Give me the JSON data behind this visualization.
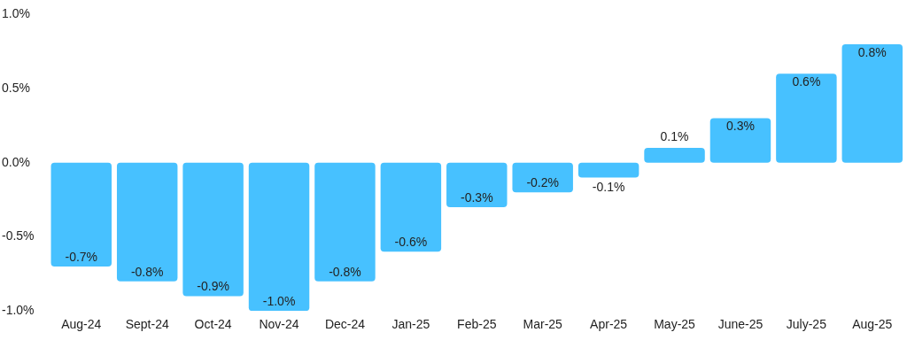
{
  "chart_data": {
    "type": "bar",
    "categories": [
      "Aug-24",
      "Sept-24",
      "Oct-24",
      "Nov-24",
      "Dec-24",
      "Jan-25",
      "Feb-25",
      "Mar-25",
      "Apr-25",
      "May-25",
      "June-25",
      "July-25",
      "Aug-25"
    ],
    "values": [
      -0.7,
      -0.8,
      -0.9,
      -1.0,
      -0.8,
      -0.6,
      -0.3,
      -0.2,
      -0.1,
      0.1,
      0.3,
      0.6,
      0.8
    ],
    "value_labels": [
      "-0.7%",
      "-0.8%",
      "-0.9%",
      "-1.0%",
      "-0.8%",
      "-0.6%",
      "-0.3%",
      "-0.2%",
      "-0.1%",
      "0.1%",
      "0.3%",
      "0.6%",
      "0.8%"
    ],
    "color": "#47c1ff",
    "ylim": [
      -1.0,
      1.0
    ],
    "yticks": [
      {
        "value": -1.0,
        "label": "-1.0%"
      },
      {
        "value": -0.5,
        "label": "-0.5%"
      },
      {
        "value": 0,
        "label": "0.0%"
      },
      {
        "value": 0.5,
        "label": "0.5%"
      },
      {
        "value": 1.0,
        "label": "1.0%"
      }
    ],
    "grid": false,
    "legend": false
  }
}
